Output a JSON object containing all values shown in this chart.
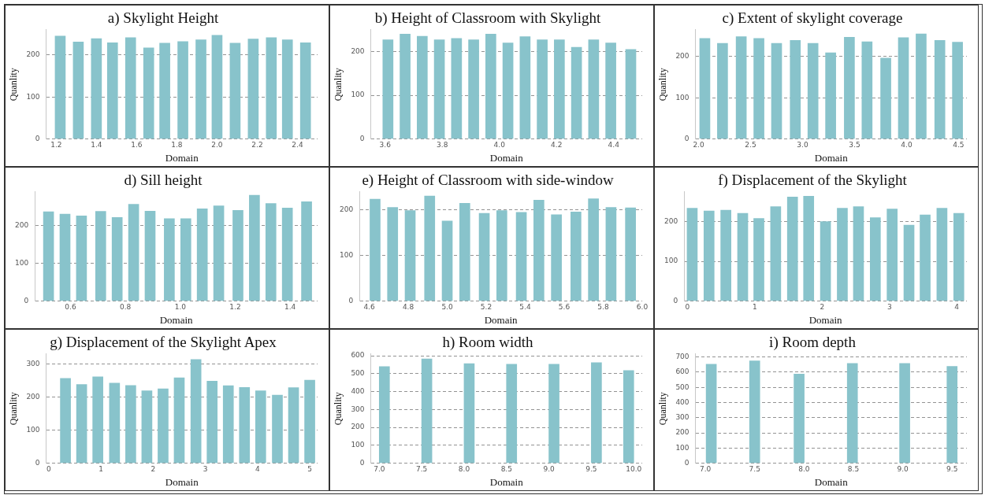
{
  "chart_data": [
    {
      "type": "bar",
      "title": "a) Skylight Height",
      "xlabel": "Domain",
      "ylabel": "Quanlity",
      "color": "#88c3cb",
      "grid": "y",
      "xlim": [
        1.15,
        2.5
      ],
      "ylim": [
        0,
        260
      ],
      "xticks": [
        1.2,
        1.4,
        1.6,
        1.8,
        {
          "value": 2,
          "label": "2.0"
        },
        2.2,
        2.4
      ],
      "yticks": [
        0,
        100,
        200
      ],
      "x": [
        1.22,
        1.31,
        1.4,
        1.48,
        1.57,
        1.66,
        1.74,
        1.83,
        1.92,
        2.0,
        2.09,
        2.18,
        2.27,
        2.35,
        2.44
      ],
      "values": [
        245,
        231,
        239,
        229,
        241,
        217,
        228,
        232,
        236,
        247,
        228,
        238,
        241,
        236,
        229
      ]
    },
    {
      "type": "bar",
      "title": "b) Height of Classroom with Skylight",
      "xlabel": "Domain",
      "ylabel": "Quanlity",
      "color": "#88c3cb",
      "grid": "y",
      "xlim": [
        3.55,
        4.5
      ],
      "ylim": [
        0,
        250
      ],
      "xticks": [
        3.6,
        3.8,
        {
          "value": 4,
          "label": "4.0"
        },
        4.2,
        4.4
      ],
      "yticks": [
        0,
        100,
        200
      ],
      "x": [
        3.61,
        3.67,
        3.73,
        3.79,
        3.85,
        3.91,
        3.97,
        4.03,
        4.09,
        4.15,
        4.21,
        4.27,
        4.33,
        4.39,
        4.46
      ],
      "values": [
        227,
        240,
        235,
        227,
        230,
        227,
        240,
        220,
        234,
        227,
        227,
        210,
        227,
        220,
        205
      ]
    },
    {
      "type": "bar",
      "title": "c) Extent of skylight coverage",
      "xlabel": "Domain",
      "ylabel": "Quanlity",
      "color": "#88c3cb",
      "grid": "y",
      "xlim": [
        1.97,
        4.58
      ],
      "ylim": [
        0,
        265
      ],
      "xticks": [
        {
          "value": 2,
          "label": "2.0"
        },
        2.5,
        {
          "value": 3,
          "label": "3.0"
        },
        3.5,
        {
          "value": 4,
          "label": "4.0"
        },
        4.5
      ],
      "yticks": [
        0,
        100,
        200
      ],
      "x": [
        2.06,
        2.23,
        2.41,
        2.58,
        2.75,
        2.93,
        3.1,
        3.27,
        3.45,
        3.62,
        3.8,
        3.97,
        4.14,
        4.32,
        4.49
      ],
      "values": [
        244,
        232,
        248,
        244,
        232,
        239,
        232,
        209,
        247,
        236,
        196,
        246,
        255,
        239,
        235
      ]
    },
    {
      "type": "bar",
      "title": "d) Sill height",
      "xlabel": "Domain",
      "color": "#88c3cb",
      "grid": "y",
      "xlim": [
        0.47,
        1.5
      ],
      "ylim": [
        0,
        290
      ],
      "xticks": [
        0.6,
        0.8,
        {
          "value": 1,
          "label": "1.0"
        },
        1.2,
        1.4
      ],
      "yticks": [
        0,
        100,
        200
      ],
      "x": [
        0.52,
        0.58,
        0.64,
        0.71,
        0.77,
        0.83,
        0.89,
        0.96,
        1.02,
        1.08,
        1.14,
        1.21,
        1.27,
        1.33,
        1.39,
        1.46
      ],
      "values": [
        237,
        231,
        226,
        238,
        222,
        257,
        239,
        219,
        219,
        245,
        253,
        241,
        281,
        259,
        247,
        264
      ]
    },
    {
      "type": "bar",
      "title": "e) Height of Classroom with side-window",
      "xlabel": "Domain",
      "color": "#88c3cb",
      "grid": "y",
      "xlim": [
        4.55,
        6.0
      ],
      "ylim": [
        0,
        240
      ],
      "xticks": [
        4.6,
        4.8,
        {
          "value": 5,
          "label": "5.0"
        },
        5.2,
        5.4,
        5.6,
        5.8,
        {
          "value": 6,
          "label": "6.0"
        }
      ],
      "yticks": [
        0,
        100,
        200
      ],
      "x": [
        4.63,
        4.72,
        4.81,
        4.91,
        5.0,
        5.09,
        5.19,
        5.28,
        5.38,
        5.47,
        5.56,
        5.66,
        5.75,
        5.84,
        5.94
      ],
      "values": [
        224,
        206,
        199,
        231,
        176,
        215,
        193,
        199,
        195,
        222,
        190,
        196,
        225,
        206,
        205
      ]
    },
    {
      "type": "bar",
      "title": "f) Displacement of the Skylight",
      "xlabel": "Domain",
      "color": "#88c3cb",
      "grid": "y",
      "xlim": [
        -0.05,
        4.15
      ],
      "ylim": [
        0,
        275
      ],
      "xticks": [
        0,
        1,
        2,
        3,
        4
      ],
      "yticks": [
        0,
        100,
        200
      ],
      "x": [
        0.07,
        0.32,
        0.57,
        0.82,
        1.06,
        1.31,
        1.56,
        1.8,
        2.05,
        2.3,
        2.54,
        2.79,
        3.04,
        3.29,
        3.53,
        3.78,
        4.03
      ],
      "values": [
        234,
        227,
        229,
        221,
        208,
        238,
        262,
        264,
        200,
        234,
        238,
        210,
        232,
        191,
        217,
        234,
        221
      ]
    },
    {
      "type": "bar",
      "title": "g) Displacement of the Skylight Apex",
      "xlabel": "Domain",
      "ylabel": "Quanlity",
      "color": "#88c3cb",
      "grid": "y",
      "xlim": [
        -0.05,
        5.15
      ],
      "ylim": [
        0,
        330
      ],
      "xticks": [
        0,
        1,
        2,
        3,
        4,
        5
      ],
      "yticks": [
        0,
        100,
        200,
        300
      ],
      "x": [
        0.32,
        0.63,
        0.94,
        1.26,
        1.57,
        1.88,
        2.19,
        2.5,
        2.82,
        3.13,
        3.44,
        3.75,
        4.06,
        4.38,
        4.69,
        5.0
      ],
      "values": [
        256,
        238,
        261,
        242,
        235,
        219,
        225,
        258,
        313,
        248,
        234,
        229,
        219,
        206,
        228,
        251
      ]
    },
    {
      "type": "bar",
      "title": "h) Room width",
      "xlabel": "Domain",
      "ylabel": "Quanlity",
      "color": "#88c3cb",
      "grid": "y",
      "xlim": [
        6.9,
        10.1
      ],
      "ylim": [
        0,
        610
      ],
      "xticks": [
        {
          "value": 7,
          "label": "7.0"
        },
        7.5,
        {
          "value": 8,
          "label": "8.0"
        },
        8.5,
        {
          "value": 9,
          "label": "9.0"
        },
        9.5,
        {
          "value": 10,
          "label": "10.0"
        }
      ],
      "yticks": [
        0,
        100,
        200,
        300,
        400,
        500,
        600
      ],
      "x": [
        7.06,
        7.56,
        8.06,
        8.56,
        9.06,
        9.56,
        9.94
      ],
      "values": [
        540,
        582,
        556,
        553,
        553,
        561,
        518
      ]
    },
    {
      "type": "bar",
      "title": "i) Room depth",
      "xlabel": "Domain",
      "ylabel": "Quanlity",
      "color": "#88c3cb",
      "grid": "y",
      "xlim": [
        6.9,
        9.65
      ],
      "ylim": [
        0,
        720
      ],
      "xticks": [
        {
          "value": 7,
          "label": "7.0"
        },
        7.5,
        {
          "value": 8,
          "label": "8.0"
        },
        8.5,
        {
          "value": 9,
          "label": "9.0"
        },
        9.5
      ],
      "yticks": [
        0,
        100,
        200,
        300,
        400,
        500,
        600,
        700
      ],
      "x": [
        7.06,
        7.5,
        7.95,
        8.49,
        9.02,
        9.5
      ],
      "values": [
        652,
        674,
        587,
        658,
        658,
        638
      ]
    }
  ]
}
